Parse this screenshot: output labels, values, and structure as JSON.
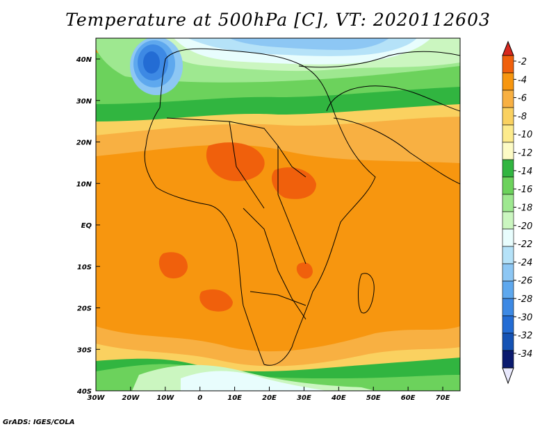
{
  "title": "Temperature at 500hPa [C], VT: 2020112603",
  "credit": "GrADS: IGES/COLA",
  "axes": {
    "lon_labels": [
      "30W",
      "20W",
      "10W",
      "0",
      "10E",
      "20E",
      "30E",
      "40E",
      "50E",
      "60E",
      "70E"
    ],
    "lat_labels": [
      "40N",
      "30N",
      "20N",
      "10N",
      "EQ",
      "10S",
      "20S",
      "30S",
      "40S"
    ]
  },
  "colorbar": {
    "labels": [
      "-2",
      "-4",
      "-6",
      "-8",
      "-10",
      "-12",
      "-14",
      "-16",
      "-18",
      "-20",
      "-22",
      "-24",
      "-26",
      "-28",
      "-30",
      "-32",
      "-34"
    ],
    "colors": [
      "#d7281e",
      "#f0600c",
      "#f7960f",
      "#f8b042",
      "#fad160",
      "#fdeb8c",
      "#fdfbc5",
      "#31b540",
      "#6cd25c",
      "#9ee890",
      "#cbf6c0",
      "#e8fdfd",
      "#b5e2f8",
      "#8dc7f4",
      "#5ea8ee",
      "#3d89e4",
      "#236cd4",
      "#1452b4",
      "#0a1a6e",
      "#e8e8fc"
    ]
  }
}
